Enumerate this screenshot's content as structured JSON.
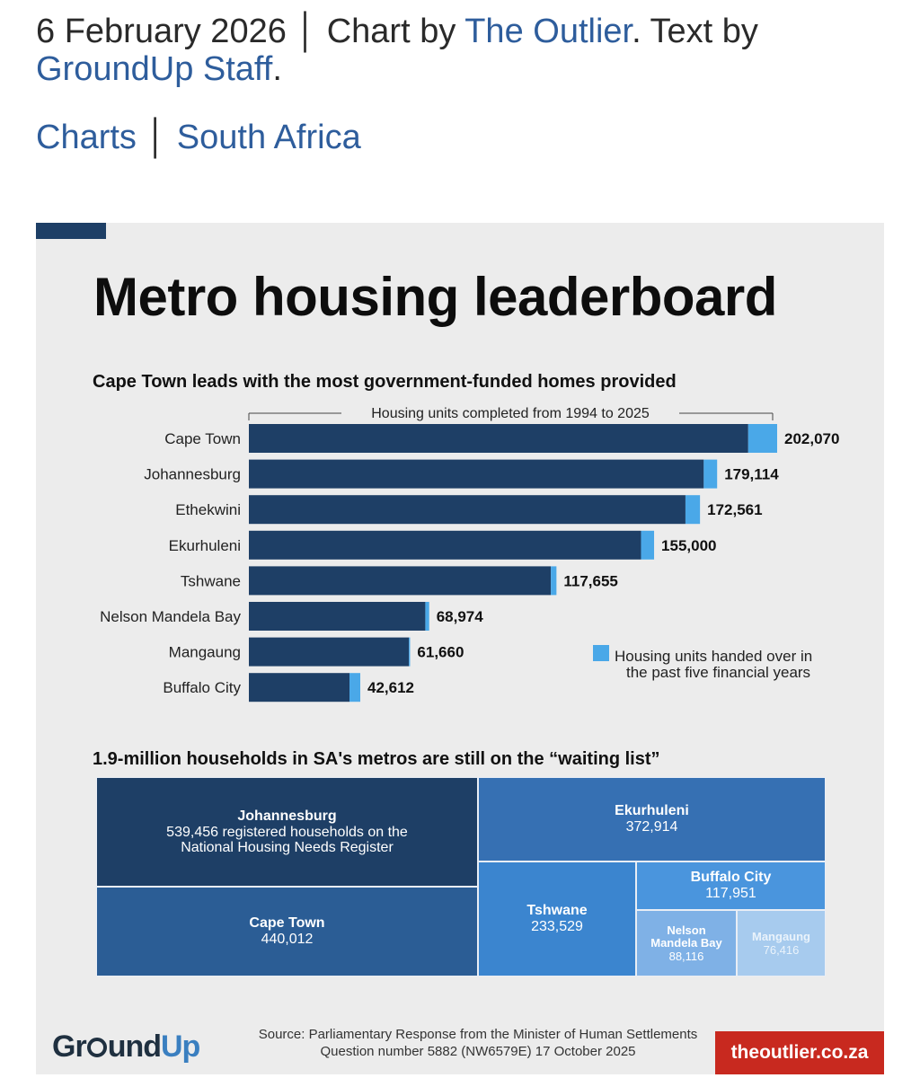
{
  "byline": {
    "date": "6 February 2026",
    "chart_prefix": "Chart by",
    "chart_author": "The Outlier",
    "text_prefix": ". Text by",
    "text_author": "GroundUp Staff",
    "end": "."
  },
  "tags": [
    "Charts",
    "South Africa"
  ],
  "infographic": {
    "title": "Metro housing leaderboard",
    "bar_subtitle": "Cape Town leads with the most government-funded homes provided",
    "treemap_subtitle": "1.9-million households in SA's metros are still on the “waiting list”",
    "source_line1": "Source: Parliamentary Response from the Minister of Human Settlements",
    "source_line2": "Question number 5882 (NW6579E) 17 October 2025",
    "logo_gr": "Gr",
    "logo_und": "und",
    "logo_up": "Up",
    "outlier_badge": "theoutlier.co.za",
    "colors": {
      "bar_dark": "#1e3f66",
      "bar_light": "#4aa8e8",
      "badge_red": "#c8291f",
      "link_blue": "#2e5d9c"
    }
  },
  "chart_data": [
    {
      "type": "bar",
      "orientation": "horizontal",
      "title": "Cape Town leads with the most government-funded homes provided",
      "axis_label": "Housing units completed from 1994 to 2025",
      "categories": [
        "Cape Town",
        "Johannesburg",
        "Ethekwini",
        "Ekurhuleni",
        "Tshwane",
        "Nelson Mandela Bay",
        "Mangaung",
        "Buffalo City"
      ],
      "value_labels": [
        "202,070",
        "179,114",
        "172,561",
        "155,000",
        "117,655",
        "68,974",
        "61,660",
        "42,612"
      ],
      "series": [
        {
          "values": [
            191000,
            174000,
            167000,
            150000,
            115500,
            67500,
            61200,
            38500
          ]
        },
        {
          "name": "Housing units handed over in the past five financial years",
          "values": [
            11070,
            5114,
            5561,
            5000,
            2155,
            1474,
            460,
            4112
          ]
        }
      ],
      "totals": [
        202070,
        179114,
        172561,
        155000,
        117655,
        68974,
        61660,
        42612
      ],
      "legend_position": "bottom-right",
      "legend_lines": [
        "Housing units handed over in",
        "the past five financial years"
      ]
    },
    {
      "type": "treemap",
      "title": "1.9-million households in SA's metros are still on the “waiting list”",
      "items": [
        {
          "name": "Johannesburg",
          "value": 539456,
          "label": "539,456 registered households on the",
          "label2": "National Housing Needs Register"
        },
        {
          "name": "Cape Town",
          "value": 440012,
          "label": "440,012"
        },
        {
          "name": "Ekurhuleni",
          "value": 372914,
          "label": "372,914"
        },
        {
          "name": "Tshwane",
          "value": 233529,
          "label": "233,529"
        },
        {
          "name": "Buffalo City",
          "value": 117951,
          "label": "117,951"
        },
        {
          "name": "Nelson",
          "name2": "Mandela Bay",
          "value": 88116,
          "label": "88,116"
        },
        {
          "name": "Mangaung",
          "value": 76416,
          "label": "76,416"
        }
      ]
    }
  ]
}
